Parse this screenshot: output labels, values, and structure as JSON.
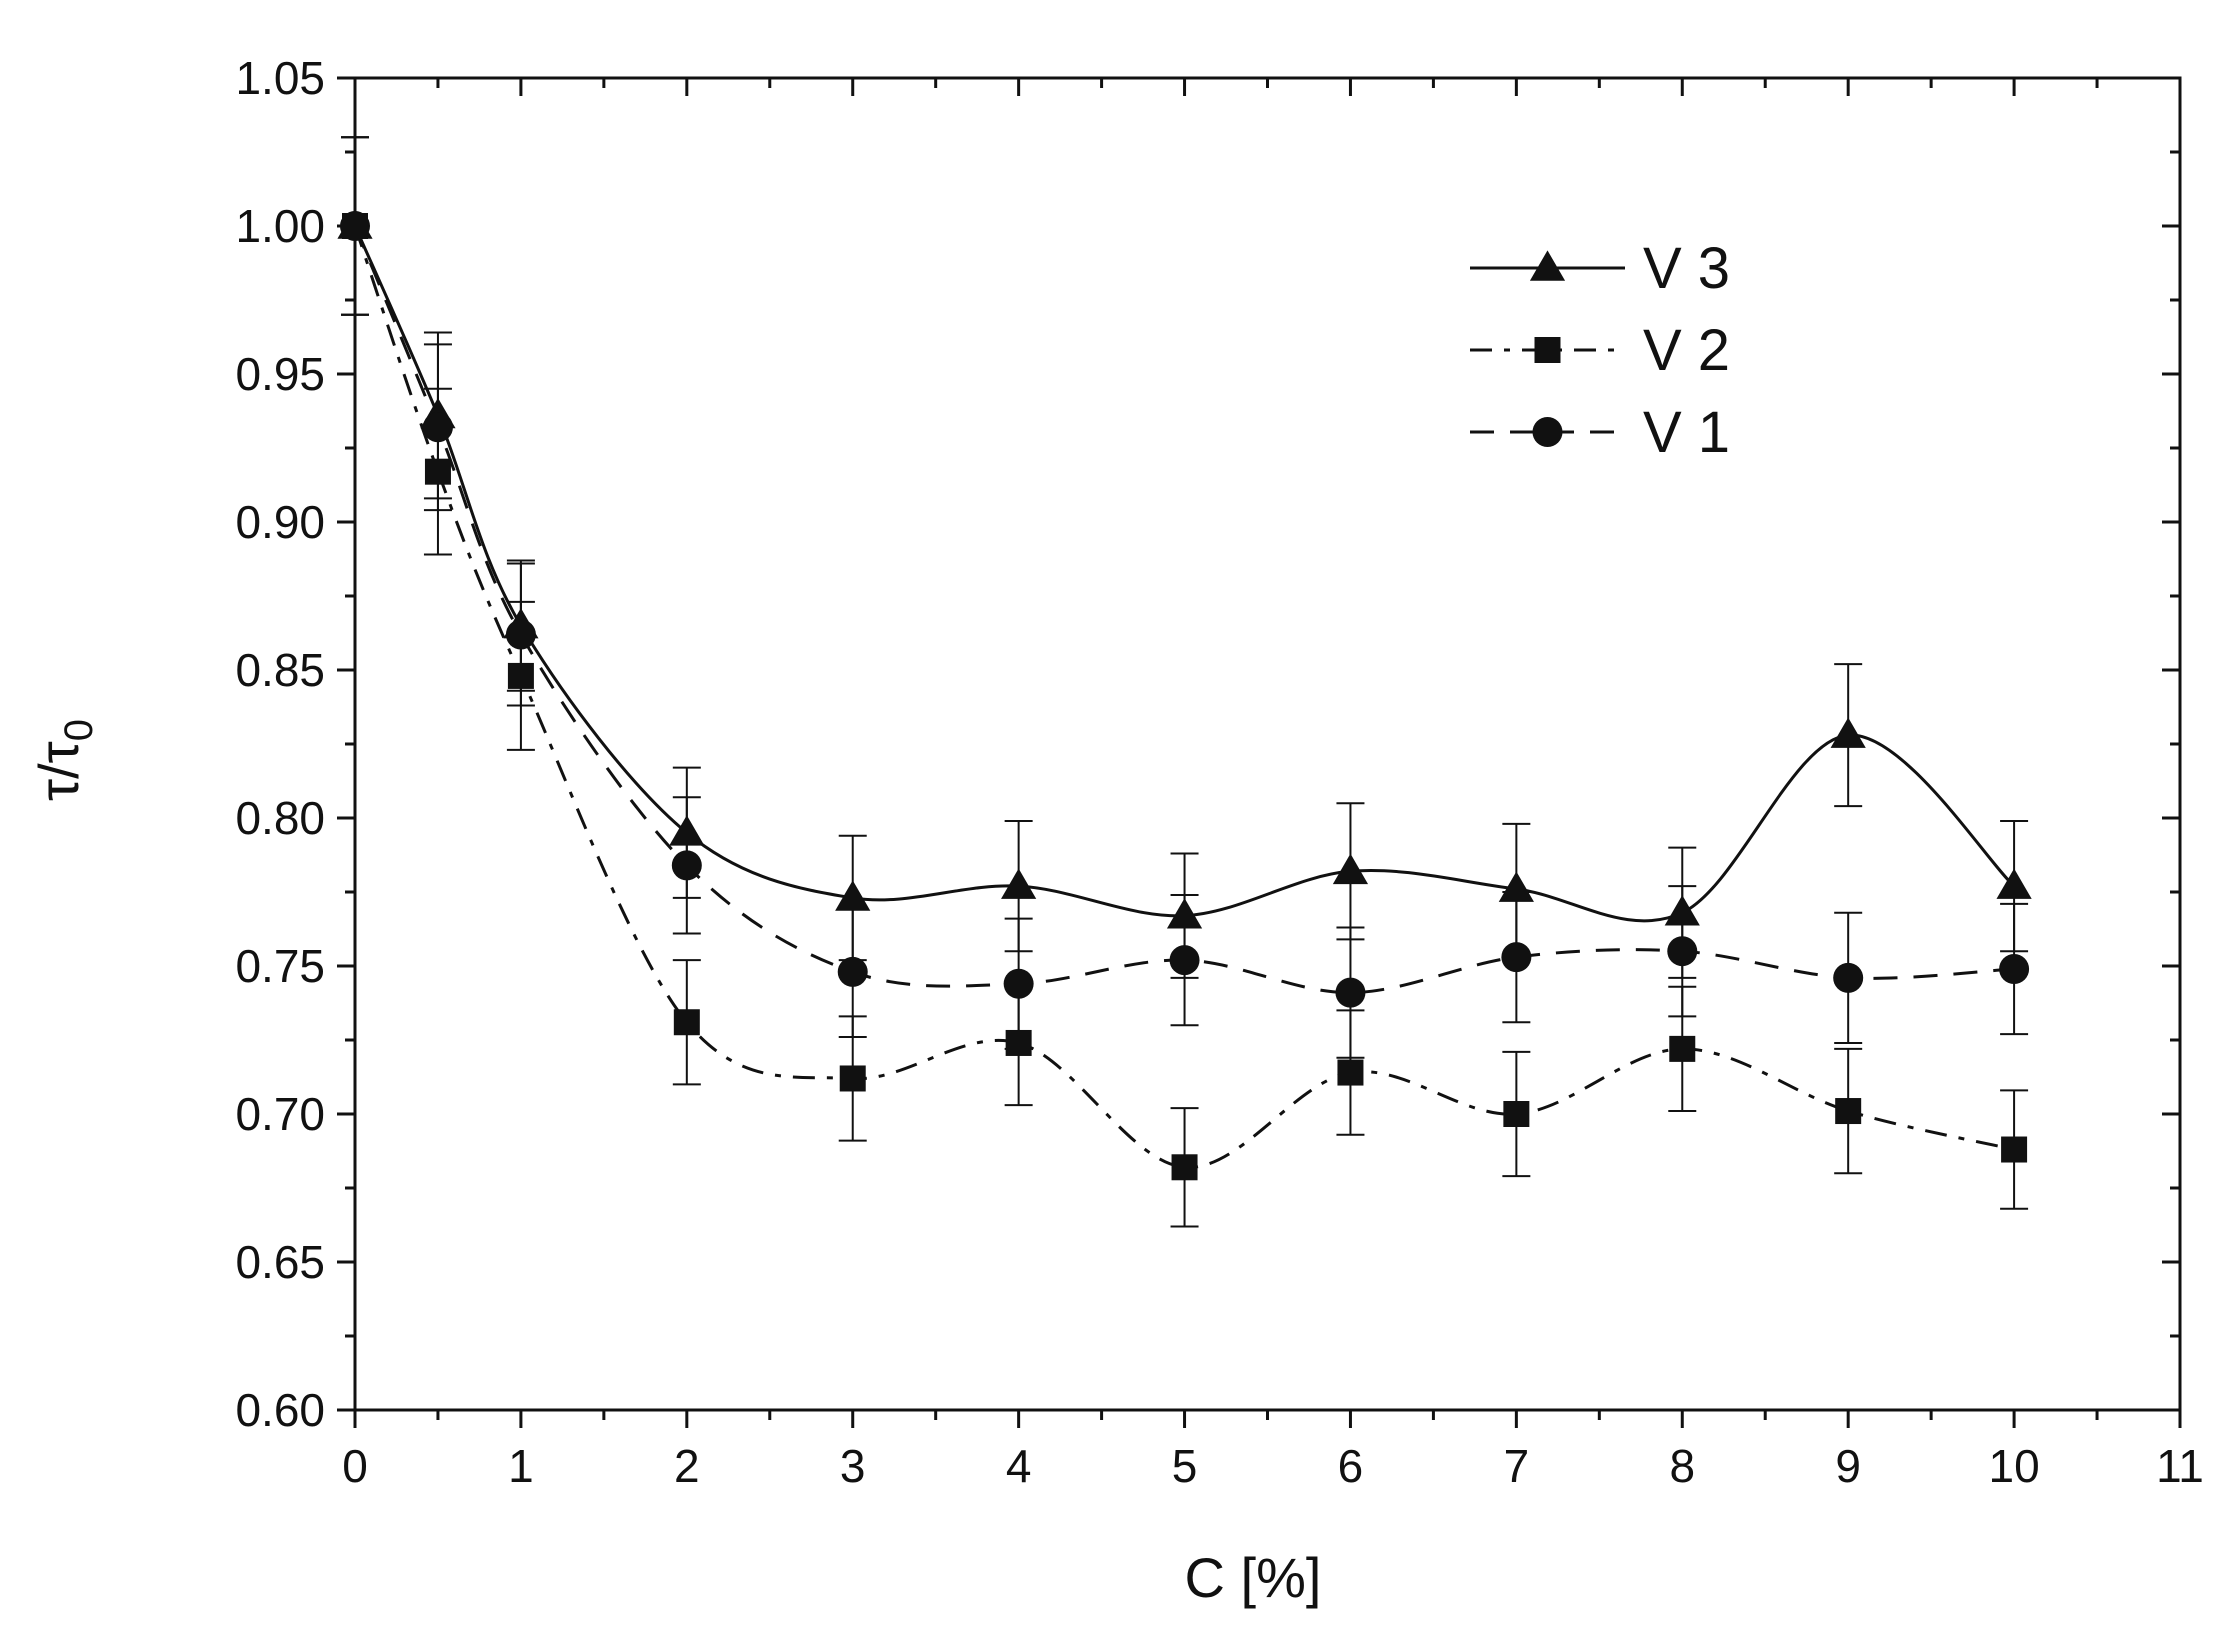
{
  "chart_data": {
    "type": "line",
    "title": "",
    "xlabel": "C [%]",
    "ylabel_main": "τ/τ",
    "ylabel_sub": "0",
    "xlim": [
      0,
      11
    ],
    "ylim": [
      0.6,
      1.05
    ],
    "xticks": [
      0,
      1,
      2,
      3,
      4,
      5,
      6,
      7,
      8,
      9,
      10,
      11
    ],
    "xtick_labels": [
      "0",
      "1",
      "2",
      "3",
      "4",
      "5",
      "6",
      "7",
      "8",
      "9",
      "10",
      "11"
    ],
    "yticks": [
      0.6,
      0.65,
      0.7,
      0.75,
      0.8,
      0.85,
      0.9,
      0.95,
      1.0,
      1.05
    ],
    "ytick_labels": [
      "0.60",
      "0.65",
      "0.70",
      "0.75",
      "0.80",
      "0.85",
      "0.90",
      "0.95",
      "1.00",
      "1.05"
    ],
    "legend_position": "top-right",
    "x": [
      0,
      0.5,
      1,
      2,
      3,
      4,
      5,
      6,
      7,
      8,
      9,
      10
    ],
    "series": [
      {
        "name": "V 3",
        "label": "V 3",
        "marker": "triangle",
        "line_style": "solid",
        "values": [
          1.0,
          0.936,
          0.865,
          0.795,
          0.773,
          0.777,
          0.767,
          0.782,
          0.776,
          0.768,
          0.828,
          0.777
        ],
        "errors": [
          0.03,
          0.028,
          0.022,
          0.022,
          0.021,
          0.022,
          0.021,
          0.023,
          0.022,
          0.022,
          0.024,
          0.022
        ]
      },
      {
        "name": "V 2",
        "label": "V 2",
        "marker": "square",
        "line_style": "dashdot",
        "values": [
          1.0,
          0.917,
          0.848,
          0.731,
          0.712,
          0.724,
          0.682,
          0.714,
          0.7,
          0.722,
          0.701,
          0.688
        ],
        "errors": [
          0.03,
          0.028,
          0.025,
          0.021,
          0.021,
          0.021,
          0.02,
          0.021,
          0.021,
          0.021,
          0.021,
          0.02
        ]
      },
      {
        "name": "V 1",
        "label": "V 1",
        "marker": "circle",
        "line_style": "dashed",
        "values": [
          1.0,
          0.932,
          0.862,
          0.784,
          0.748,
          0.744,
          0.752,
          0.741,
          0.753,
          0.755,
          0.746,
          0.749
        ],
        "errors": [
          0.03,
          0.028,
          0.024,
          0.023,
          0.022,
          0.022,
          0.022,
          0.022,
          0.022,
          0.022,
          0.022,
          0.022
        ]
      }
    ]
  }
}
